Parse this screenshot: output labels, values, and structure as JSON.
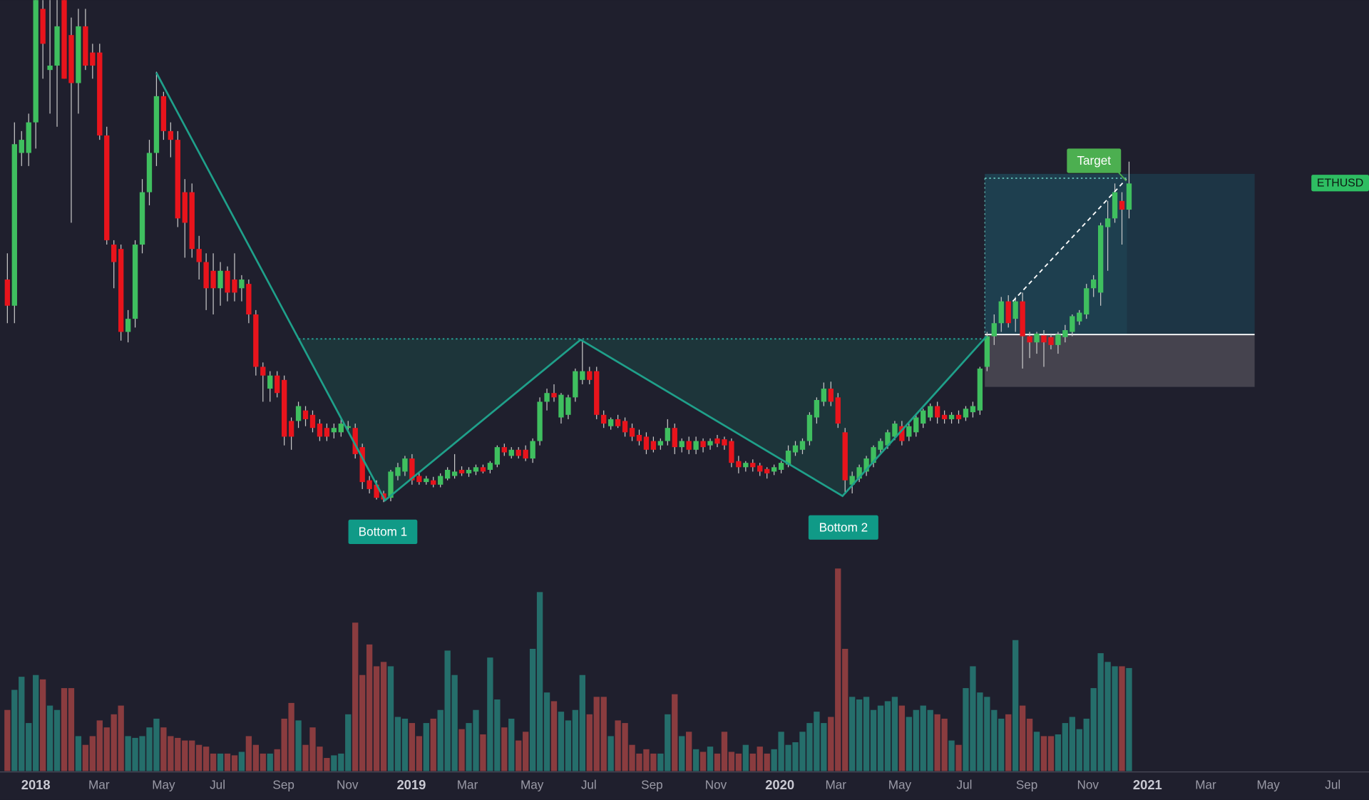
{
  "chart_data": {
    "type": "candlestick",
    "symbol": "ETHUSD",
    "annotations": [
      "Bottom 1",
      "Bottom 2",
      "Target"
    ],
    "up_color": "#3fbf5f",
    "down_color": "#e8141c",
    "wick_color": "#c8c8c8",
    "volume_up_color": "#256e6b",
    "volume_down_color": "#8a3c3f",
    "xlim": [
      -5.04,
      187.8
    ],
    "ylim": [
      0,
      650
    ],
    "volume_lim": [
      0,
      240
    ],
    "xticks_years": [
      {
        "value": 0,
        "label": "2018"
      },
      {
        "value": 52.9,
        "label": "2019"
      },
      {
        "value": 104.8,
        "label": "2020"
      },
      {
        "value": 156.6,
        "label": "2021"
      }
    ],
    "xticks": [
      {
        "value": 8.9,
        "label": "Mar"
      },
      {
        "value": 18,
        "label": "May"
      },
      {
        "value": 25.6,
        "label": "Jul"
      },
      {
        "value": 34.9,
        "label": "Sep"
      },
      {
        "value": 43.9,
        "label": "Nov"
      },
      {
        "value": 60.8,
        "label": "Mar"
      },
      {
        "value": 69.9,
        "label": "May"
      },
      {
        "value": 77.9,
        "label": "Jul"
      },
      {
        "value": 86.8,
        "label": "Sep"
      },
      {
        "value": 95.8,
        "label": "Nov"
      },
      {
        "value": 112.7,
        "label": "Mar"
      },
      {
        "value": 121.7,
        "label": "May"
      },
      {
        "value": 130.8,
        "label": "Jul"
      },
      {
        "value": 139.6,
        "label": "Sep"
      },
      {
        "value": 148.2,
        "label": "Nov"
      },
      {
        "value": 164.8,
        "label": "Mar"
      },
      {
        "value": 173.6,
        "label": "May"
      },
      {
        "value": 182.7,
        "label": "Jul"
      }
    ],
    "x": [
      -4,
      -3,
      -2,
      -1,
      0,
      1,
      2,
      3,
      4,
      5,
      6,
      7,
      8,
      9,
      10,
      11,
      12,
      13,
      14,
      15,
      16,
      17,
      18,
      19,
      20,
      21,
      22,
      23,
      24,
      25,
      26,
      27,
      28,
      29,
      30,
      31,
      32,
      33,
      34,
      35,
      36,
      37,
      38,
      39,
      40,
      41,
      42,
      43,
      44,
      45,
      46,
      47,
      48,
      49,
      50,
      51,
      52,
      53,
      54,
      55,
      56,
      57,
      58,
      59,
      60,
      61,
      62,
      63,
      64,
      65,
      66,
      67,
      68,
      69,
      70,
      71,
      72,
      73,
      74,
      75,
      76,
      77,
      78,
      79,
      80,
      81,
      82,
      83,
      84,
      85,
      86,
      87,
      88,
      89,
      90,
      91,
      92,
      93,
      94,
      95,
      96,
      97,
      98,
      99,
      100,
      101,
      102,
      103,
      104,
      105,
      106,
      107,
      108,
      109,
      110,
      111,
      112,
      113,
      114,
      115,
      116,
      117,
      118,
      119,
      120,
      121,
      122,
      123,
      124,
      125,
      126,
      127,
      128,
      129,
      130,
      131,
      132,
      133,
      134,
      135,
      136,
      137,
      138,
      139,
      140,
      141,
      142,
      143,
      144,
      145,
      146,
      147,
      148,
      149,
      150,
      151,
      152,
      153,
      154
    ],
    "ohlc": [
      [
        330,
        360,
        280,
        300
      ],
      [
        300,
        510,
        280,
        485
      ],
      [
        475,
        500,
        460,
        490
      ],
      [
        475,
        520,
        460,
        510
      ],
      [
        510,
        650,
        480,
        650
      ],
      [
        640,
        650,
        560,
        600
      ],
      [
        570,
        650,
        520,
        575
      ],
      [
        575,
        650,
        505,
        620
      ],
      [
        650,
        650,
        560,
        560
      ],
      [
        610,
        630,
        395,
        555
      ],
      [
        555,
        640,
        520,
        620
      ],
      [
        620,
        640,
        570,
        575
      ],
      [
        590,
        600,
        560,
        575
      ],
      [
        590,
        600,
        490,
        495
      ],
      [
        495,
        505,
        370,
        375
      ],
      [
        370,
        375,
        320,
        350
      ],
      [
        365,
        370,
        260,
        270
      ],
      [
        270,
        295,
        258,
        285
      ],
      [
        285,
        375,
        275,
        370
      ],
      [
        370,
        445,
        360,
        430
      ],
      [
        430,
        490,
        415,
        475
      ],
      [
        475,
        568,
        460,
        540
      ],
      [
        540,
        545,
        490,
        500
      ],
      [
        500,
        510,
        470,
        490
      ],
      [
        490,
        500,
        390,
        400
      ],
      [
        430,
        445,
        355,
        395
      ],
      [
        430,
        440,
        355,
        365
      ],
      [
        365,
        380,
        330,
        350
      ],
      [
        350,
        360,
        295,
        320
      ],
      [
        340,
        360,
        290,
        320
      ],
      [
        320,
        350,
        300,
        340
      ],
      [
        340,
        345,
        305,
        315
      ],
      [
        330,
        360,
        305,
        315
      ],
      [
        320,
        335,
        305,
        330
      ],
      [
        325,
        330,
        280,
        290
      ],
      [
        290,
        295,
        220,
        230
      ],
      [
        230,
        235,
        190,
        220
      ],
      [
        205,
        225,
        190,
        220
      ],
      [
        220,
        225,
        195,
        200
      ],
      [
        215,
        220,
        140,
        150
      ],
      [
        168,
        172,
        135,
        150
      ],
      [
        168,
        190,
        160,
        185
      ],
      [
        180,
        185,
        162,
        170
      ],
      [
        175,
        180,
        155,
        160
      ],
      [
        165,
        170,
        145,
        150
      ],
      [
        160,
        165,
        145,
        150
      ],
      [
        155,
        165,
        148,
        160
      ],
      [
        155,
        170,
        150,
        165
      ],
      [
        160,
        168,
        155,
        162
      ],
      [
        160,
        165,
        125,
        130
      ],
      [
        138,
        142,
        90,
        98
      ],
      [
        100,
        105,
        85,
        90
      ],
      [
        95,
        100,
        78,
        80
      ],
      [
        85,
        88,
        75,
        78
      ],
      [
        80,
        112,
        76,
        110
      ],
      [
        105,
        120,
        100,
        115
      ],
      [
        110,
        128,
        105,
        125
      ],
      [
        125,
        130,
        95,
        100
      ],
      [
        105,
        108,
        95,
        98
      ],
      [
        98,
        105,
        95,
        102
      ],
      [
        100,
        104,
        92,
        95
      ],
      [
        95,
        108,
        92,
        105
      ],
      [
        102,
        115,
        100,
        112
      ],
      [
        105,
        130,
        102,
        110
      ],
      [
        112,
        116,
        105,
        108
      ],
      [
        108,
        115,
        104,
        112
      ],
      [
        110,
        118,
        106,
        115
      ],
      [
        115,
        118,
        108,
        110
      ],
      [
        112,
        122,
        108,
        120
      ],
      [
        118,
        140,
        115,
        138
      ],
      [
        138,
        142,
        128,
        132
      ],
      [
        128,
        138,
        125,
        135
      ],
      [
        135,
        138,
        125,
        128
      ],
      [
        135,
        140,
        122,
        125
      ],
      [
        125,
        148,
        120,
        145
      ],
      [
        145,
        195,
        140,
        190
      ],
      [
        190,
        205,
        180,
        200
      ],
      [
        200,
        210,
        190,
        195
      ],
      [
        172,
        200,
        165,
        198
      ],
      [
        175,
        198,
        170,
        195
      ],
      [
        195,
        228,
        190,
        225
      ],
      [
        215,
        260,
        210,
        225
      ],
      [
        225,
        230,
        210,
        215
      ],
      [
        225,
        230,
        170,
        175
      ],
      [
        175,
        180,
        160,
        165
      ],
      [
        162,
        172,
        158,
        170
      ],
      [
        170,
        175,
        160,
        162
      ],
      [
        168,
        172,
        150,
        155
      ],
      [
        160,
        165,
        145,
        150
      ],
      [
        152,
        158,
        140,
        145
      ],
      [
        150,
        155,
        130,
        135
      ],
      [
        145,
        150,
        132,
        135
      ],
      [
        140,
        148,
        135,
        145
      ],
      [
        145,
        170,
        140,
        160
      ],
      [
        160,
        165,
        130,
        138
      ],
      [
        138,
        148,
        132,
        145
      ],
      [
        145,
        150,
        130,
        135
      ],
      [
        135,
        150,
        130,
        145
      ],
      [
        145,
        148,
        132,
        138
      ],
      [
        140,
        148,
        135,
        145
      ],
      [
        148,
        152,
        138,
        142
      ],
      [
        147,
        150,
        135,
        140
      ],
      [
        145,
        148,
        115,
        120
      ],
      [
        122,
        128,
        108,
        115
      ],
      [
        115,
        122,
        110,
        120
      ],
      [
        120,
        124,
        110,
        115
      ],
      [
        117,
        120,
        105,
        110
      ],
      [
        113,
        115,
        102,
        108
      ],
      [
        110,
        118,
        106,
        115
      ],
      [
        112,
        122,
        108,
        120
      ],
      [
        118,
        140,
        115,
        134
      ],
      [
        132,
        145,
        128,
        140
      ],
      [
        135,
        148,
        130,
        145
      ],
      [
        145,
        178,
        140,
        175
      ],
      [
        172,
        195,
        165,
        192
      ],
      [
        190,
        212,
        185,
        205
      ],
      [
        205,
        213,
        185,
        190
      ],
      [
        195,
        200,
        160,
        165
      ],
      [
        155,
        160,
        85,
        100
      ],
      [
        95,
        110,
        85,
        105
      ],
      [
        102,
        118,
        98,
        115
      ],
      [
        110,
        128,
        105,
        125
      ],
      [
        120,
        140,
        115,
        138
      ],
      [
        135,
        148,
        130,
        145
      ],
      [
        140,
        158,
        136,
        155
      ],
      [
        150,
        168,
        146,
        165
      ],
      [
        162,
        168,
        140,
        145
      ],
      [
        150,
        165,
        145,
        162
      ],
      [
        155,
        175,
        150,
        172
      ],
      [
        165,
        182,
        160,
        180
      ],
      [
        172,
        188,
        168,
        185
      ],
      [
        185,
        190,
        165,
        172
      ],
      [
        175,
        180,
        165,
        170
      ],
      [
        170,
        178,
        165,
        175
      ],
      [
        175,
        180,
        165,
        170
      ],
      [
        172,
        185,
        168,
        182
      ],
      [
        178,
        190,
        172,
        185
      ],
      [
        180,
        230,
        175,
        228
      ],
      [
        230,
        270,
        225,
        265
      ],
      [
        265,
        290,
        255,
        280
      ],
      [
        280,
        310,
        270,
        305
      ],
      [
        305,
        312,
        275,
        280
      ],
      [
        285,
        310,
        270,
        305
      ],
      [
        305,
        315,
        228,
        265
      ],
      [
        265,
        270,
        240,
        258
      ],
      [
        258,
        270,
        245,
        268
      ],
      [
        266,
        272,
        230,
        258
      ],
      [
        264,
        268,
        250,
        255
      ],
      [
        255,
        270,
        245,
        267
      ],
      [
        264,
        278,
        258,
        272
      ],
      [
        270,
        290,
        265,
        288
      ],
      [
        282,
        295,
        278,
        292
      ],
      [
        290,
        325,
        285,
        320
      ],
      [
        320,
        335,
        310,
        330
      ],
      [
        315,
        395,
        300,
        392
      ],
      [
        390,
        420,
        340,
        400
      ],
      [
        400,
        440,
        395,
        430
      ],
      [
        420,
        430,
        370,
        410
      ],
      [
        410,
        465,
        400,
        440
      ]
    ],
    "volume": [
      70,
      93,
      108,
      55,
      110,
      105,
      75,
      70,
      95,
      95,
      40,
      30,
      40,
      58,
      50,
      65,
      75,
      40,
      38,
      40,
      50,
      60,
      50,
      40,
      38,
      35,
      35,
      30,
      28,
      20,
      20,
      20,
      18,
      22,
      40,
      30,
      20,
      20,
      25,
      60,
      78,
      58,
      30,
      50,
      28,
      15,
      18,
      20,
      65,
      170,
      110,
      145,
      120,
      125,
      120,
      62,
      60,
      55,
      40,
      55,
      60,
      70,
      138,
      110,
      48,
      55,
      70,
      42,
      130,
      82,
      50,
      60,
      35,
      45,
      140,
      205,
      90,
      80,
      68,
      58,
      70,
      110,
      65,
      85,
      85,
      40,
      58,
      55,
      30,
      20,
      25,
      20,
      20,
      65,
      88,
      40,
      45,
      25,
      22,
      28,
      20,
      45,
      22,
      20,
      30,
      20,
      28,
      20,
      25,
      45,
      30,
      33,
      45,
      55,
      68,
      55,
      62,
      232,
      140,
      85,
      82,
      85,
      70,
      75,
      80,
      85,
      75,
      62,
      70,
      75,
      70,
      65,
      60,
      35,
      30,
      95,
      120,
      90,
      85,
      70,
      60,
      65,
      150,
      75,
      60,
      45,
      40,
      40,
      42,
      55,
      62,
      48,
      60,
      95,
      135,
      125,
      120,
      120,
      118
    ]
  }
}
